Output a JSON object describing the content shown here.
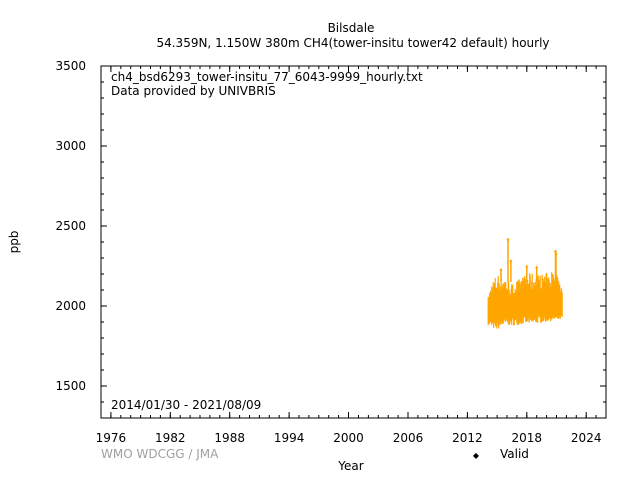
{
  "header": {
    "station": "Bilsdale",
    "subtitle": "54.359N, 1.150W 380m    CH4(tower-insitu tower42 default) hourly"
  },
  "annotations": {
    "filename": "ch4_bsd6293_tower-insitu_77_6043-9999_hourly.txt",
    "provider": "Data provided by UNIVBRIS",
    "date_range": "2014/01/30 - 2021/08/09"
  },
  "footer": {
    "credit": "WMO WDCGG / JMA"
  },
  "legend": {
    "label": "Valid",
    "symbol": "◆"
  },
  "colors": {
    "series": "#ffa500",
    "axis": "#000000",
    "credit": "#a0a0a0"
  },
  "chart_data": {
    "type": "scatter",
    "xlabel": "Year",
    "ylabel": "ppb",
    "xlim": [
      1975,
      2026
    ],
    "ylim": [
      1300,
      3500
    ],
    "x_ticks": [
      1976,
      1982,
      1988,
      1994,
      2000,
      2006,
      2012,
      2018,
      2024
    ],
    "x_minor_step": 1,
    "y_ticks": [
      1500,
      2000,
      2500,
      3000,
      3500
    ],
    "y_minor_step": 100,
    "grid": false,
    "legend_position": "bottom-right",
    "series": [
      {
        "name": "Valid",
        "color": "#ffa500",
        "marker": "diamond",
        "x_range": [
          "2014/01/30",
          "2021/08/09"
        ],
        "x": [
          2014.1,
          2014.5,
          2015.0,
          2015.5,
          2016.0,
          2016.5,
          2017.0,
          2017.5,
          2018.0,
          2018.5,
          2019.0,
          2019.5,
          2020.0,
          2020.5,
          2021.0,
          2021.6
        ],
        "y_min": [
          1880,
          1860,
          1850,
          1870,
          1880,
          1875,
          1880,
          1885,
          1890,
          1880,
          1890,
          1895,
          1900,
          1905,
          1905,
          1915
        ],
        "y_max": [
          2060,
          2160,
          2200,
          2210,
          2180,
          2140,
          2160,
          2180,
          2200,
          2210,
          2200,
          2200,
          2210,
          2220,
          2200,
          2100
        ],
        "y_typical_low": [
          1950,
          1930,
          1930,
          1940,
          1950,
          1950,
          1950,
          1955,
          1960,
          1950,
          1960,
          1960,
          1965,
          1970,
          1960,
          1960
        ],
        "y_typical_high": [
          2020,
          2060,
          2080,
          2080,
          2060,
          2050,
          2070,
          2090,
          2100,
          2080,
          2090,
          2100,
          2110,
          2110,
          2100,
          2060
        ],
        "spikes": [
          {
            "x": 2016.1,
            "y": 2415
          },
          {
            "x": 2016.4,
            "y": 2280
          },
          {
            "x": 2018.0,
            "y": 2245
          },
          {
            "x": 2019.0,
            "y": 2240
          },
          {
            "x": 2020.9,
            "y": 2340
          },
          {
            "x": 2020.95,
            "y": 2325
          },
          {
            "x": 2015.4,
            "y": 2225
          }
        ]
      }
    ]
  }
}
